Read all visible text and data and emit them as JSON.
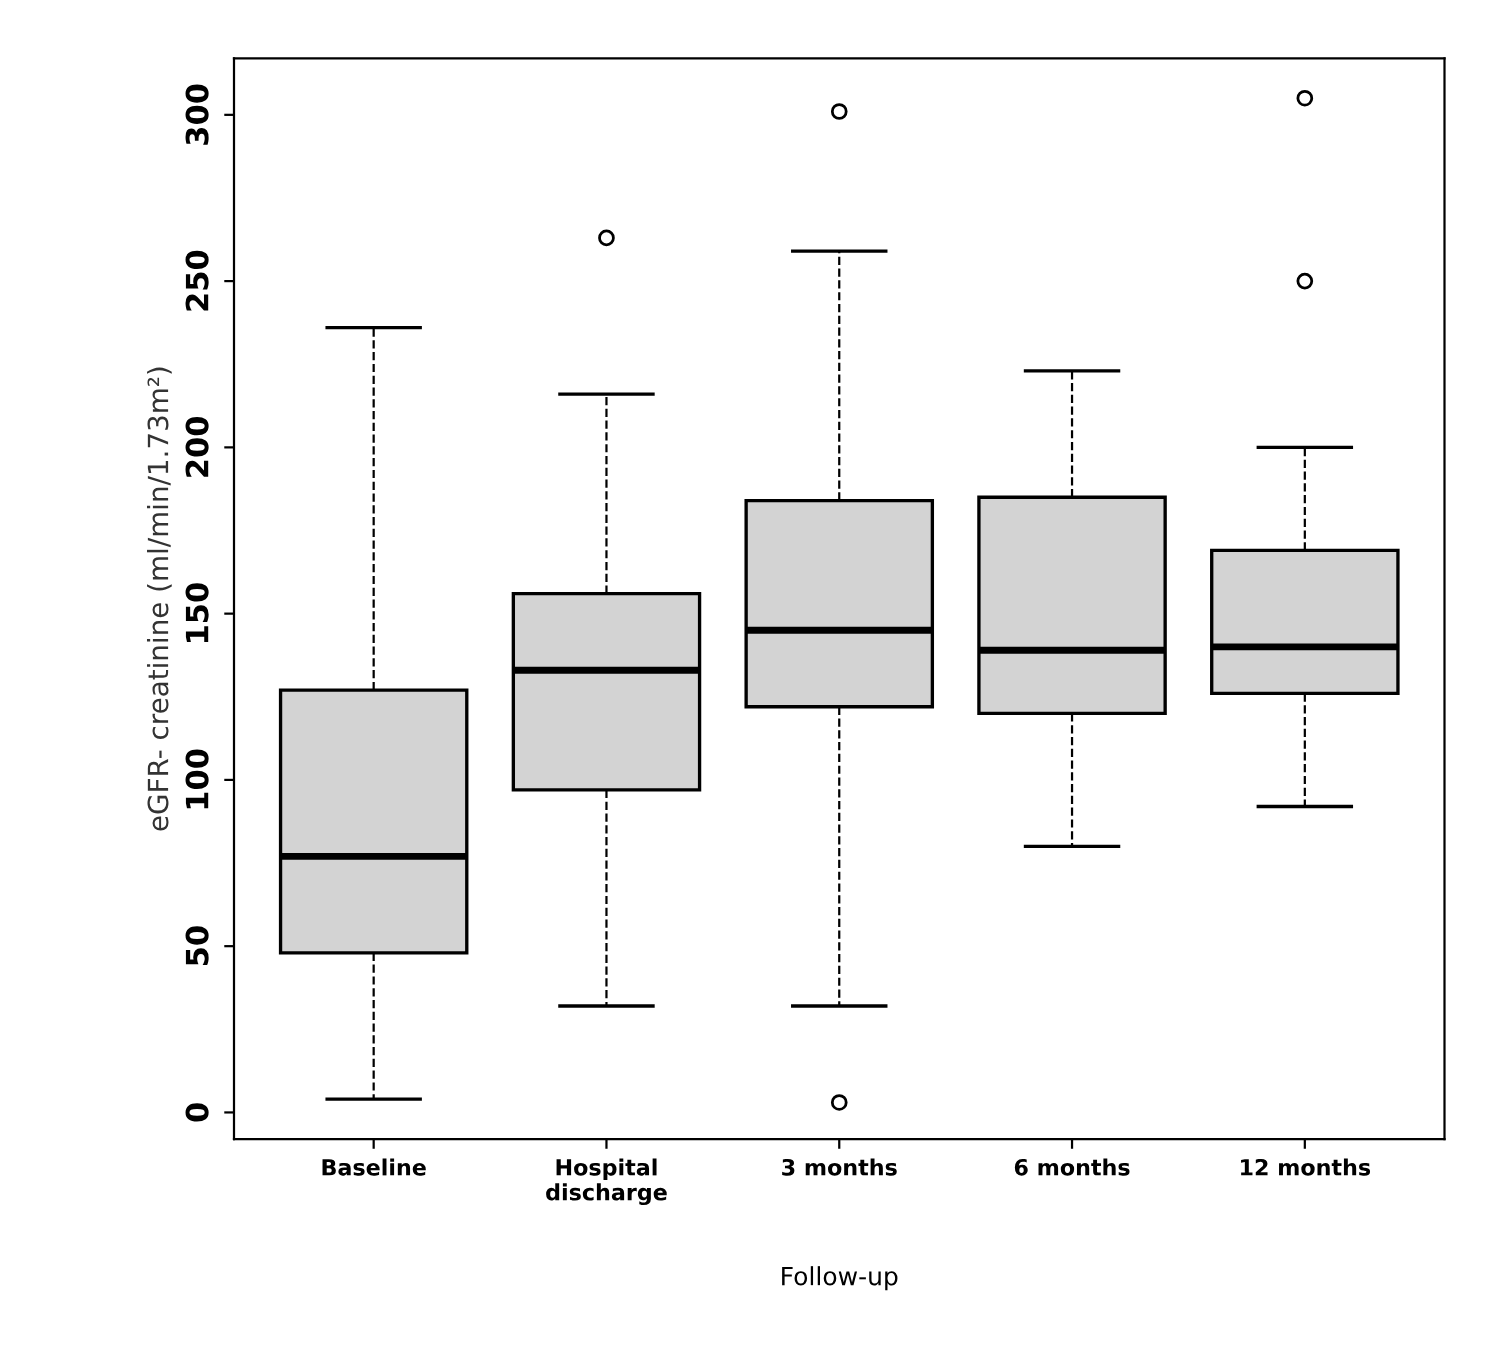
{
  "chart_data": {
    "type": "box",
    "xlabel": "Follow-up",
    "ylabel": "eGFR- creatinine (ml/min/1.73m²)",
    "categories": [
      "Baseline",
      "Hospital\ndischarge",
      "3 months",
      "6 months",
      "12 months"
    ],
    "color": "#d3d3d3",
    "boxes": [
      {
        "low": 4,
        "q1": 48,
        "median": 77,
        "q3": 127,
        "high": 236
      },
      {
        "low": 32,
        "q1": 97,
        "median": 133,
        "q3": 156,
        "high": 216,
        "outliers": [
          263
        ]
      },
      {
        "low": 32,
        "q1": 122,
        "median": 145,
        "q3": 184,
        "high": 259,
        "outliers": [
          301,
          3
        ]
      },
      {
        "low": 80,
        "q1": 120,
        "median": 139,
        "q3": 185,
        "high": 223
      },
      {
        "low": 92,
        "q1": 126,
        "median": 140,
        "q3": 169,
        "high": 200,
        "outliers": [
          250,
          305
        ]
      }
    ],
    "ylim": [
      -8,
      317
    ],
    "yticks": [
      0,
      50,
      100,
      150,
      200,
      250,
      300
    ],
    "grid": false
  }
}
